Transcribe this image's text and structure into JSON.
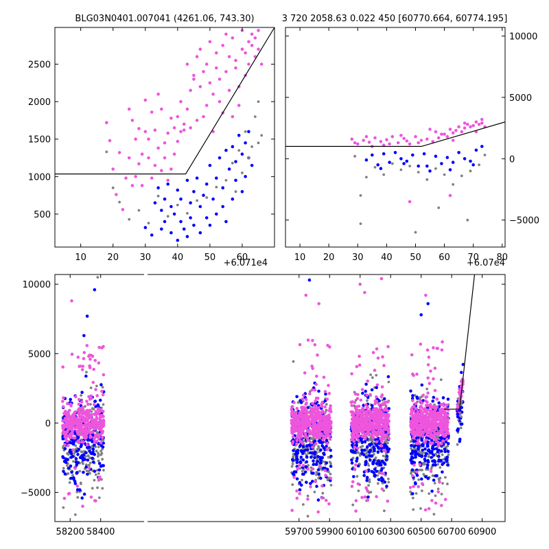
{
  "figure": {
    "title_left": "BLG03N0401.007041 (4261.06, 743.30)",
    "title_right": "3 720 2058.63 0.022 450 [60770.664, 60774.195]"
  },
  "colors": {
    "gray": "#808080",
    "blue": "#0000ff",
    "magenta": "#ee55dd",
    "line": "#000000"
  },
  "chart_data": [
    {
      "type": "scatter",
      "panel": "top-left zoom",
      "offset_label": "+6.071e4",
      "xlim": [
        2,
        70
      ],
      "ylim": [
        60,
        2990
      ],
      "xticks": [
        10,
        20,
        30,
        40,
        50,
        60
      ],
      "yticks": [
        500,
        1000,
        1500,
        2000,
        2500
      ],
      "model_line": {
        "x": [
          2,
          42.5,
          70
        ],
        "y": [
          1035,
          1035,
          2990
        ]
      },
      "series": [
        {
          "color": "magenta",
          "x": [
            18,
            19,
            20,
            21,
            22,
            23,
            24,
            25,
            25,
            26,
            26,
            27,
            27,
            28,
            28,
            29,
            29,
            30,
            30,
            31,
            31,
            32,
            32,
            33,
            33,
            34,
            34,
            35,
            35,
            36,
            36,
            37,
            37,
            38,
            38,
            39,
            39,
            40,
            40,
            41,
            41,
            42,
            42,
            43,
            43,
            44,
            44,
            45,
            45,
            46,
            46,
            47,
            47,
            48,
            48,
            49,
            49,
            50,
            50,
            51,
            51,
            52,
            52,
            53,
            53,
            54,
            54,
            55,
            55,
            56,
            56,
            57,
            57,
            58,
            58,
            59,
            59,
            60,
            60,
            61,
            61,
            62,
            62,
            63,
            63,
            64,
            64,
            65,
            65,
            66
          ],
          "y": [
            1720,
            1480,
            1100,
            760,
            1320,
            560,
            980,
            1900,
            1250,
            1750,
            880,
            1500,
            1000,
            1640,
            1170,
            1300,
            880,
            1600,
            2020,
            1250,
            1500,
            980,
            1860,
            1150,
            1620,
            2100,
            1380,
            1900,
            1080,
            1250,
            1450,
            1580,
            950,
            1100,
            1780,
            1650,
            1300,
            1470,
            1800,
            2000,
            1600,
            1620,
            1700,
            1900,
            2500,
            2150,
            1650,
            2350,
            2300,
            2600,
            1750,
            2700,
            2200,
            2400,
            1800,
            2500,
            1950,
            2250,
            2800,
            1600,
            2100,
            2650,
            2450,
            2000,
            2300,
            2750,
            1850,
            2900,
            2400,
            2150,
            2600,
            1800,
            2850,
            2450,
            2550,
            1950,
            2200,
            2700,
            2950,
            2650,
            2350,
            2800,
            2500,
            2900,
            2750,
            2600,
            2850,
            2700,
            2950,
            2500
          ]
        },
        {
          "color": "blue",
          "x": [
            30,
            32,
            33,
            34,
            35,
            35,
            36,
            36,
            37,
            38,
            38,
            39,
            40,
            40,
            41,
            41,
            42,
            43,
            43,
            44,
            44,
            45,
            45,
            46,
            47,
            47,
            48,
            49,
            49,
            50,
            50,
            51,
            52,
            52,
            53,
            54,
            54,
            55,
            55,
            56,
            57,
            57,
            58,
            58,
            59,
            60,
            60,
            61,
            61,
            62,
            62,
            63
          ],
          "y": [
            320,
            220,
            650,
            850,
            550,
            300,
            700,
            400,
            900,
            250,
            600,
            500,
            150,
            820,
            400,
            700,
            300,
            950,
            200,
            650,
            450,
            800,
            350,
            980,
            600,
            250,
            750,
            450,
            900,
            350,
            1150,
            700,
            500,
            980,
            1250,
            600,
            850,
            1350,
            400,
            1100,
            700,
            1400,
            950,
            1200,
            1550,
            800,
            1300,
            1000,
            1450,
            1250,
            1600,
            1150
          ]
        },
        {
          "color": "gray",
          "x": [
            18,
            20,
            22,
            25,
            28,
            31,
            34,
            37,
            40,
            43,
            46,
            49,
            52,
            55,
            57,
            58,
            59,
            60,
            61,
            62,
            63,
            64,
            65,
            65,
            66
          ],
          "y": [
            1330,
            850,
            660,
            430,
            550,
            380,
            740,
            470,
            620,
            510,
            680,
            720,
            860,
            950,
            1180,
            800,
            1350,
            1050,
            1600,
            1250,
            1400,
            1800,
            1450,
            2000,
            1550
          ]
        }
      ]
    },
    {
      "type": "scatter",
      "panel": "top-right zoom",
      "offset_label": "+6.07e4",
      "xlim": [
        5,
        81
      ],
      "ylim": [
        -7200,
        10700
      ],
      "xticks": [
        10,
        20,
        30,
        40,
        50,
        60,
        70,
        80
      ],
      "yticks": [
        -5000,
        0,
        5000,
        10000
      ],
      "model_line": {
        "x": [
          5,
          52,
          81
        ],
        "y": [
          1000,
          1000,
          3000
        ]
      },
      "series": [
        {
          "color": "magenta",
          "x": [
            28,
            30,
            32,
            34,
            35,
            36,
            38,
            40,
            41,
            42,
            44,
            46,
            47,
            48,
            50,
            52,
            54,
            56,
            57,
            58,
            60,
            61,
            62,
            63,
            64,
            65,
            66,
            67,
            68,
            69,
            70,
            71,
            72,
            73,
            74,
            29,
            33,
            39,
            45,
            51,
            55,
            59,
            63,
            67,
            71,
            73,
            62,
            48
          ],
          "y": [
            1600,
            1200,
            1500,
            1350,
            1000,
            1700,
            1400,
            1550,
            1200,
            1800,
            1300,
            1650,
            1450,
            1200,
            1800,
            1500,
            1600,
            1400,
            2200,
            1700,
            2000,
            1800,
            2400,
            2100,
            2300,
            2600,
            2200,
            2500,
            2800,
            2600,
            2700,
            3000,
            2800,
            2900,
            2600,
            1300,
            1800,
            1100,
            1900,
            1300,
            2400,
            2000,
            1500,
            2900,
            2200,
            3200,
            -3000,
            -3500
          ]
        },
        {
          "color": "blue",
          "x": [
            33,
            35,
            37,
            39,
            41,
            43,
            45,
            47,
            49,
            51,
            53,
            55,
            57,
            59,
            61,
            63,
            65,
            67,
            69,
            71,
            73,
            38,
            46,
            54,
            62,
            70
          ],
          "y": [
            -100,
            300,
            -500,
            400,
            -300,
            500,
            0,
            -200,
            300,
            -600,
            400,
            -1000,
            200,
            -400,
            100,
            -300,
            500,
            0,
            -200,
            700,
            1000,
            -800,
            -400,
            -600,
            -900,
            -500
          ]
        },
        {
          "color": "gray",
          "x": [
            29,
            31,
            33,
            36,
            39,
            42,
            45,
            48,
            51,
            54,
            57,
            60,
            63,
            66,
            69,
            72,
            74,
            31,
            58,
            68,
            50
          ],
          "y": [
            200,
            -3000,
            -1500,
            -700,
            -1300,
            -400,
            -900,
            -600,
            -1100,
            -1700,
            -800,
            -1300,
            -2100,
            -1400,
            -1000,
            -500,
            300,
            -5300,
            -4000,
            -5000,
            -6000
          ]
        }
      ]
    },
    {
      "type": "scatter",
      "panel": "bottom full light curve",
      "xlim": [
        58100,
        61050
      ],
      "ylim": [
        -7100,
        10700
      ],
      "xticks": [
        58200,
        58400,
        59700,
        59900,
        60100,
        60300,
        60500,
        60700,
        60900
      ],
      "yticks": [
        -5000,
        0,
        5000,
        10000
      ],
      "season_clusters": [
        {
          "x_range": [
            58150,
            58420
          ],
          "n": 210
        },
        {
          "x_range": [
            59650,
            59910
          ],
          "n": 240
        },
        {
          "x_range": [
            60040,
            60290
          ],
          "n": 240
        },
        {
          "x_range": [
            60430,
            60680
          ],
          "n": 240
        }
      ],
      "event_cluster": {
        "x_range": [
          60735,
          60775
        ],
        "n": 60
      },
      "outliers": [
        {
          "color": "blue",
          "x": 58290,
          "y": 6300
        },
        {
          "color": "blue",
          "x": 58312,
          "y": 7700
        },
        {
          "color": "blue",
          "x": 58360,
          "y": 9600
        },
        {
          "color": "gray",
          "x": 58380,
          "y": 10500
        },
        {
          "color": "magenta",
          "x": 58210,
          "y": 8800
        },
        {
          "color": "magenta",
          "x": 59745,
          "y": 9200
        },
        {
          "color": "blue",
          "x": 59768,
          "y": 10300
        },
        {
          "color": "magenta",
          "x": 59830,
          "y": 8600
        },
        {
          "color": "magenta",
          "x": 60100,
          "y": 10000
        },
        {
          "color": "magenta",
          "x": 60130,
          "y": 9400
        },
        {
          "color": "magenta",
          "x": 60240,
          "y": 10400
        },
        {
          "color": "magenta",
          "x": 60530,
          "y": 9200
        },
        {
          "color": "blue",
          "x": 60500,
          "y": 7800
        },
        {
          "color": "blue",
          "x": 60545,
          "y": 8600
        }
      ],
      "model_line": {
        "x": [
          60650,
          60752,
          60850
        ],
        "y": [
          1000,
          1000,
          10700
        ]
      }
    }
  ]
}
